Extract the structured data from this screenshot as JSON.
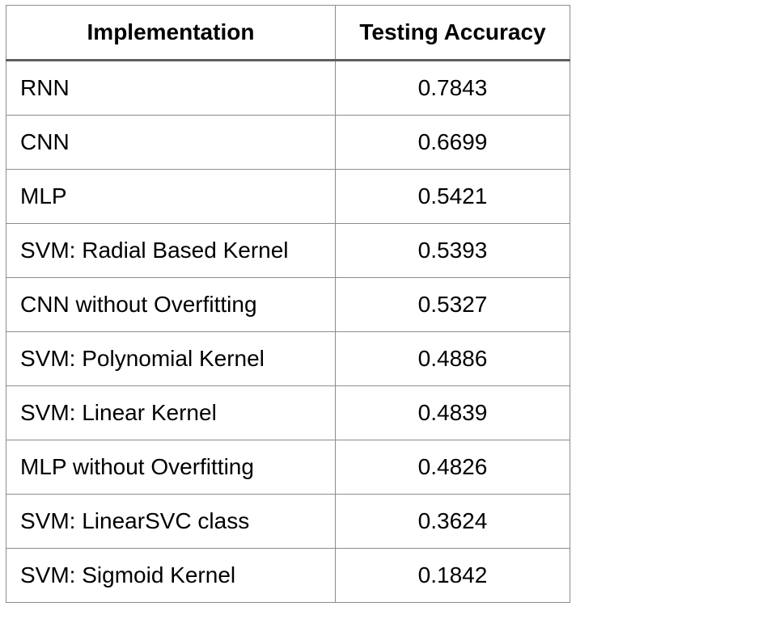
{
  "table": {
    "headers": [
      "Implementation",
      "Testing Accuracy"
    ],
    "rows": [
      {
        "implementation": "RNN",
        "accuracy": "0.7843"
      },
      {
        "implementation": "CNN",
        "accuracy": "0.6699"
      },
      {
        "implementation": "MLP",
        "accuracy": "0.5421"
      },
      {
        "implementation": "SVM: Radial Based Kernel",
        "accuracy": "0.5393"
      },
      {
        "implementation": "CNN without Overfitting",
        "accuracy": "0.5327"
      },
      {
        "implementation": "SVM: Polynomial Kernel",
        "accuracy": "0.4886"
      },
      {
        "implementation": "SVM: Linear Kernel",
        "accuracy": "0.4839"
      },
      {
        "implementation": "MLP without Overfitting",
        "accuracy": "0.4826"
      },
      {
        "implementation": "SVM: LinearSVC class",
        "accuracy": "0.3624"
      },
      {
        "implementation": "SVM: Sigmoid Kernel",
        "accuracy": "0.1842"
      }
    ]
  }
}
